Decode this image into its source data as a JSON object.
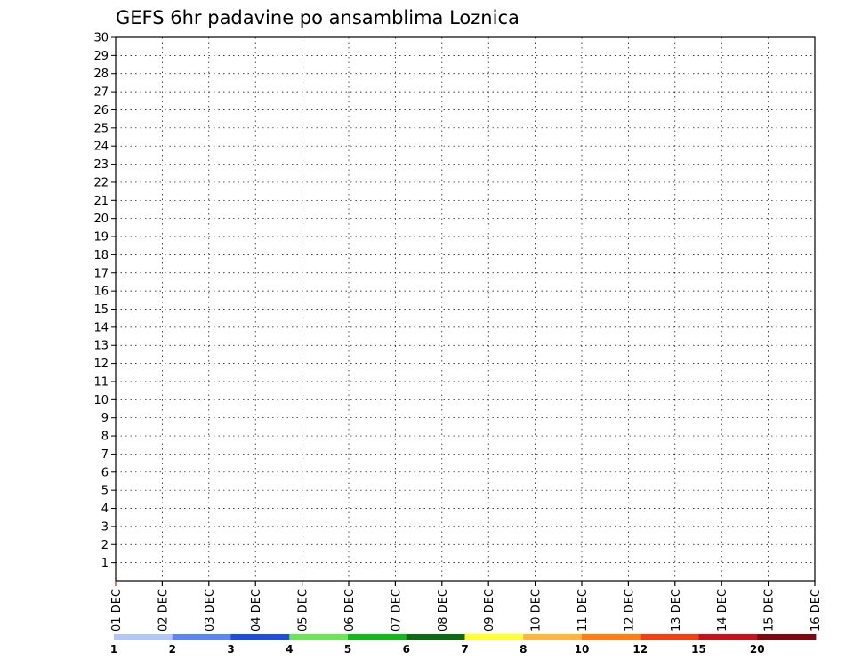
{
  "chart_data": {
    "type": "heatmap",
    "title": "GEFS 6hr padavine po ansamblima Loznica",
    "xlabel": "",
    "ylabel": "",
    "x_tick_labels": [
      "01 DEC",
      "02 DEC",
      "03 DEC",
      "04 DEC",
      "05 DEC",
      "06 DEC",
      "07 DEC",
      "08 DEC",
      "09 DEC",
      "10 DEC",
      "11 DEC",
      "12 DEC",
      "13 DEC",
      "14 DEC",
      "15 DEC",
      "16 DEC"
    ],
    "y_tick_labels": [
      "1",
      "2",
      "3",
      "4",
      "5",
      "6",
      "7",
      "8",
      "9",
      "10",
      "11",
      "12",
      "13",
      "14",
      "15",
      "16",
      "17",
      "18",
      "19",
      "20",
      "21",
      "22",
      "23",
      "24",
      "25",
      "26",
      "27",
      "28",
      "29",
      "30"
    ],
    "grid": true,
    "legend": "colorbar-bottom",
    "colorbar": {
      "labels": [
        "1",
        "2",
        "3",
        "4",
        "5",
        "6",
        "7",
        "8",
        "10",
        "12",
        "15",
        "20"
      ],
      "colors": [
        "#b3c6f7",
        "#5b86ec",
        "#1f4fd8",
        "#6fe35a",
        "#15b81c",
        "#0c6b12",
        "#ffff33",
        "#ffb53f",
        "#ff7d14",
        "#f04016",
        "#c2141a",
        "#7a0a10"
      ]
    },
    "cells": [
      {
        "day": 1.0,
        "member": "1",
        "value": 0
      }
    ]
  }
}
